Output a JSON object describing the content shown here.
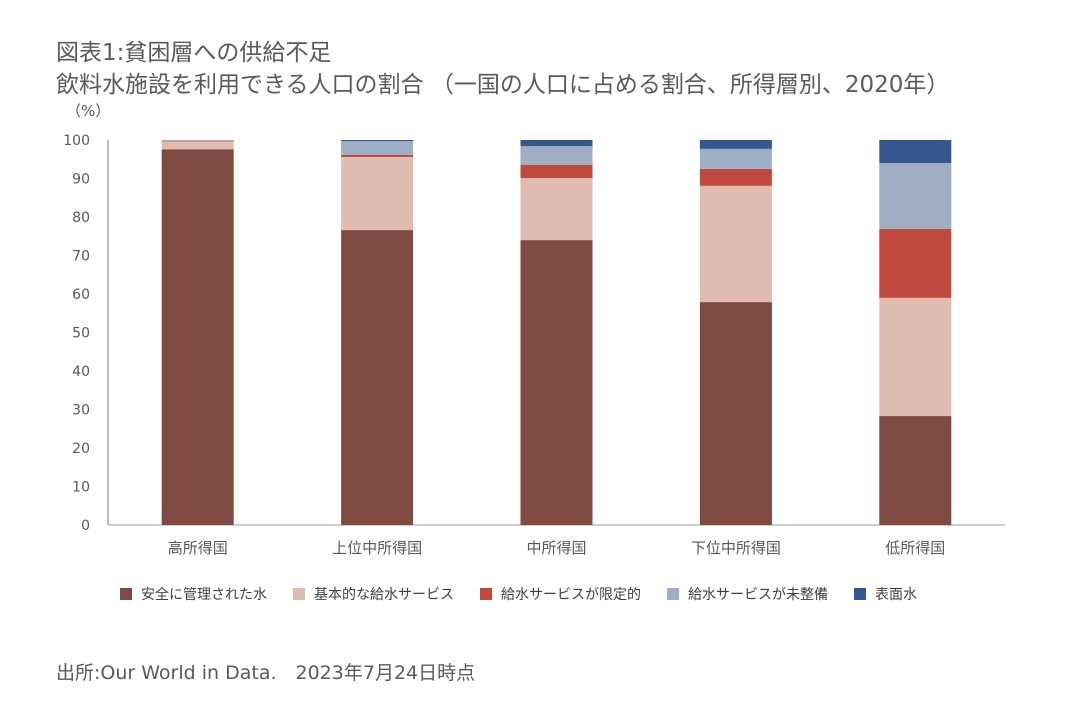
{
  "title_line1": "図表1:貧困層への供給不足",
  "title_line2": "飲料水施設を利用できる人口の割合 （一国の人口に占める割合、所得層別、2020年）",
  "source": "出所:Our World in Data.　2023年7月24日時点",
  "chart_data": {
    "type": "bar",
    "stacked": true,
    "title": "飲料水施設を利用できる人口の割合 （一国の人口に占める割合、所得層別、2020年）",
    "xlabel": "",
    "ylabel": "（%）",
    "ylim": [
      0,
      100
    ],
    "yticks": [
      "0",
      "10",
      "20",
      "30",
      "40",
      "50",
      "60",
      "70",
      "80",
      "90",
      "100"
    ],
    "grid": false,
    "legend_position": "bottom",
    "categories": [
      "高所得国",
      "上位中所得国",
      "中所得国",
      "下位中所得国",
      "低所得国"
    ],
    "series": [
      {
        "name": "安全に管理された水",
        "color": "#7f4a41",
        "values": [
          97.6,
          76.6,
          74.0,
          57.9,
          28.3
        ]
      },
      {
        "name": "基本的な給水サービス",
        "color": "#e0bbb2",
        "values": [
          2.1,
          19.0,
          16.1,
          30.2,
          30.7
        ]
      },
      {
        "name": "給水サービスが限定的",
        "color": "#c0483f",
        "values": [
          0.1,
          0.5,
          3.4,
          4.4,
          17.9
        ]
      },
      {
        "name": "給水サービスが未整備",
        "color": "#9eaec4",
        "values": [
          0.2,
          3.6,
          4.9,
          5.2,
          17.1
        ]
      },
      {
        "name": "表面水",
        "color": "#34578e",
        "values": [
          0.0,
          0.3,
          1.6,
          2.3,
          6.0
        ]
      }
    ]
  }
}
